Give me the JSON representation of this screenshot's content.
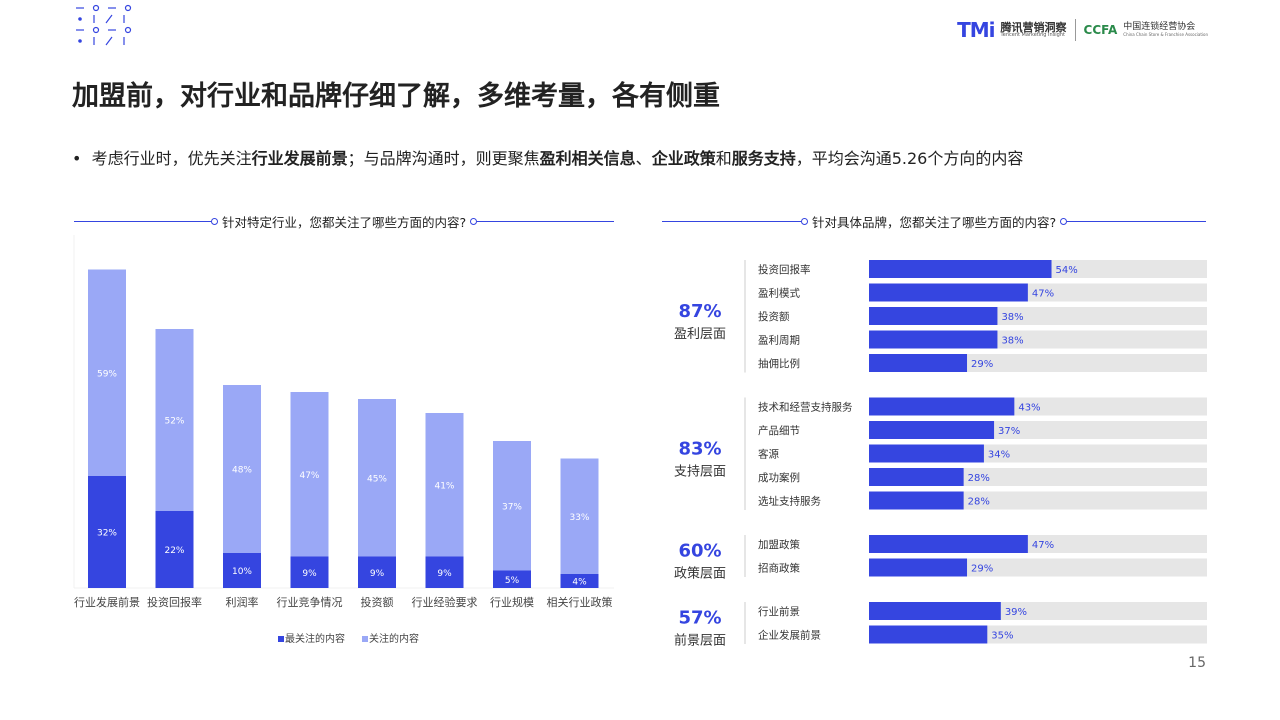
{
  "page": {
    "title": "加盟前，对行业和品牌仔细了解，多维考量，各有侧重",
    "bullet": [
      {
        "text": "考虑行业时，优先关注",
        "bold": false
      },
      {
        "text": "行业发展前景",
        "bold": true
      },
      {
        "text": "；与品牌沟通时，则更聚焦",
        "bold": false
      },
      {
        "text": "盈利相关信息",
        "bold": true
      },
      {
        "text": "、",
        "bold": false
      },
      {
        "text": "企业政策",
        "bold": true
      },
      {
        "text": "和",
        "bold": false
      },
      {
        "text": "服务支持",
        "bold": true
      },
      {
        "text": "，平均会沟通5.26个方向的内容",
        "bold": false
      }
    ],
    "page_number": "15"
  },
  "logos": {
    "tmi_mark": "TMi",
    "tmi_cn": "腾讯营销洞察",
    "tmi_en": "Tencent Marketing Insight",
    "ccfa_mark": "CCFA",
    "ccfa_cn": "中国连锁经营协会",
    "ccfa_en": "China Chain Store & Franchise Association"
  },
  "colors": {
    "dark_blue": "#3545e0",
    "light_blue": "#9aa8f6",
    "track_gray": "#e6e6e6",
    "accent_text": "#3545e0"
  },
  "chart_data": [
    {
      "type": "bar",
      "stacked": true,
      "title": "针对特定行业，您都关注了哪些方面的内容?",
      "categories": [
        "行业发展前景",
        "投资回报率",
        "利润率",
        "行业竞争情况",
        "投资额",
        "行业经验要求",
        "行业规模",
        "相关行业政策"
      ],
      "series": [
        {
          "name": "最关注的内容",
          "values": [
            32,
            22,
            10,
            9,
            9,
            9,
            5,
            4
          ],
          "color": "#3545e0"
        },
        {
          "name": "关注的内容",
          "values": [
            59,
            52,
            48,
            47,
            45,
            41,
            37,
            33
          ],
          "color": "#9aa8f6"
        }
      ],
      "ylim": [
        0,
        100
      ],
      "value_suffix": "%",
      "legend": "bottom",
      "grid": false
    },
    {
      "type": "bar",
      "orientation": "horizontal",
      "title": "针对具体品牌，您都关注了哪些方面的内容?",
      "xlim": [
        0,
        100
      ],
      "value_suffix": "%",
      "groups": [
        {
          "percent": "87%",
          "label": "盈利层面",
          "items": [
            {
              "label": "投资回报率",
              "value": 54
            },
            {
              "label": "盈利模式",
              "value": 47
            },
            {
              "label": "投资额",
              "value": 38
            },
            {
              "label": "盈利周期",
              "value": 38
            },
            {
              "label": "抽佣比例",
              "value": 29
            }
          ]
        },
        {
          "percent": "83%",
          "label": "支持层面",
          "items": [
            {
              "label": "技术和经营支持服务",
              "value": 43
            },
            {
              "label": "产品细节",
              "value": 37
            },
            {
              "label": "客源",
              "value": 34
            },
            {
              "label": "成功案例",
              "value": 28
            },
            {
              "label": "选址支持服务",
              "value": 28
            }
          ]
        },
        {
          "percent": "60%",
          "label": "政策层面",
          "items": [
            {
              "label": "加盟政策",
              "value": 47
            },
            {
              "label": "招商政策",
              "value": 29
            }
          ]
        },
        {
          "percent": "57%",
          "label": "前景层面",
          "items": [
            {
              "label": "行业前景",
              "value": 39
            },
            {
              "label": "企业发展前景",
              "value": 35
            }
          ]
        }
      ]
    }
  ]
}
